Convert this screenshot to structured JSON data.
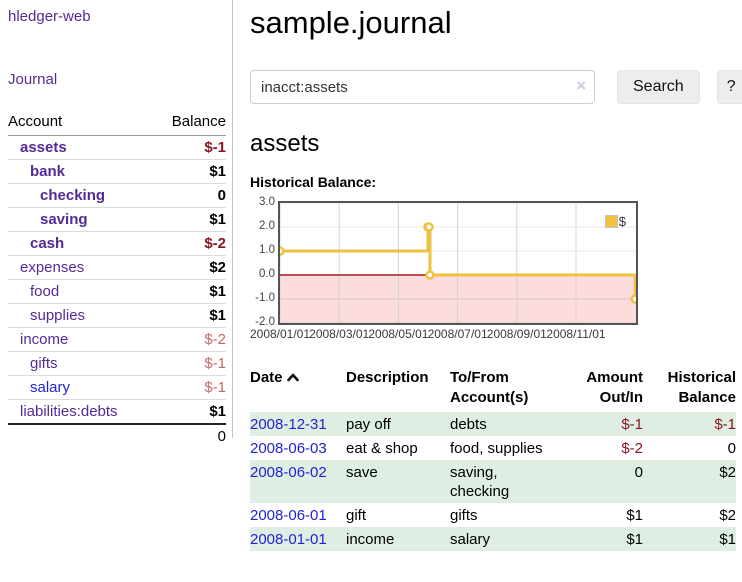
{
  "sidebar": {
    "app_title": "hledger-web",
    "journal_link": "Journal",
    "accounts_table": {
      "headers": {
        "account": "Account",
        "balance": "Balance"
      },
      "rows": [
        {
          "name": "assets",
          "balance": "$-1",
          "level": 1,
          "bold": true,
          "balance_style": "neg-strong"
        },
        {
          "name": "bank",
          "balance": "$1",
          "level": 2,
          "bold": true,
          "balance_style": "pos"
        },
        {
          "name": "checking",
          "balance": "0",
          "level": 3,
          "bold": true,
          "balance_style": "pos"
        },
        {
          "name": "saving",
          "balance": "$1",
          "level": 3,
          "bold": true,
          "balance_style": "pos"
        },
        {
          "name": "cash",
          "balance": "$-2",
          "level": 2,
          "bold": true,
          "balance_style": "neg-strong"
        },
        {
          "name": "expenses",
          "balance": "$2",
          "level": 1,
          "bold": false,
          "balance_style": "pos"
        },
        {
          "name": "food",
          "balance": "$1",
          "level": 2,
          "bold": false,
          "balance_style": "pos"
        },
        {
          "name": "supplies",
          "balance": "$1",
          "level": 2,
          "bold": false,
          "balance_style": "pos"
        },
        {
          "name": "income",
          "balance": "$-2",
          "level": 1,
          "bold": false,
          "balance_style": "neg-soft"
        },
        {
          "name": "gifts",
          "balance": "$-1",
          "level": 2,
          "bold": false,
          "balance_style": "neg-soft"
        },
        {
          "name": "salary",
          "balance": "$-1",
          "level": 2,
          "bold": false,
          "balance_style": "neg-soft",
          "link_style": "blue"
        },
        {
          "name": "liabilities:debts",
          "balance": "$1",
          "level": 1,
          "bold": false,
          "balance_style": "pos"
        }
      ],
      "total": "0"
    }
  },
  "main": {
    "title": "sample.journal",
    "search": {
      "value": "inacct:assets",
      "clear_icon": "×",
      "button": "Search",
      "help_button": "?"
    },
    "account_heading": "assets",
    "chart_label": "Historical Balance:"
  },
  "chart_data": {
    "type": "line",
    "style": "step",
    "title": "Historical Balance",
    "series": [
      {
        "name": "$",
        "color": "#edc240",
        "points": [
          [
            "2008-01-01",
            1
          ],
          [
            "2008-06-01",
            2
          ],
          [
            "2008-06-02",
            2
          ],
          [
            "2008-06-03",
            0
          ],
          [
            "2008-12-31",
            -1
          ]
        ]
      }
    ],
    "ylim": [
      -2,
      3
    ],
    "yticks": [
      3,
      2,
      1,
      0,
      -1,
      -2
    ],
    "xticks": [
      "2008/01/01",
      "2008/03/01",
      "2008/05/01",
      "2008/07/01",
      "2008/09/01",
      "2008/11/01"
    ],
    "grid": true,
    "legend": "$",
    "legend_position": "top-right",
    "negative_region_color": "#fcdcdc",
    "zero_line_color": "#9c1f1f"
  },
  "register": {
    "headers": {
      "date": "Date",
      "description": "Description",
      "accounts": "To/From Account(s)",
      "amount": "Amount Out/In",
      "balance": "Historical Balance"
    },
    "rows": [
      {
        "date": "2008-12-31",
        "description": "pay off",
        "accounts": "debts",
        "amount": "$-1",
        "balance": "$-1",
        "amount_negative": true,
        "balance_negative": true
      },
      {
        "date": "2008-06-03",
        "description": "eat & shop",
        "accounts": "food, supplies",
        "amount": "$-2",
        "balance": "0",
        "amount_negative": true,
        "balance_negative": false
      },
      {
        "date": "2008-06-02",
        "description": "save",
        "accounts": "saving, checking",
        "amount": "0",
        "balance": "$2",
        "amount_negative": false,
        "balance_negative": false
      },
      {
        "date": "2008-06-01",
        "description": "gift",
        "accounts": "gifts",
        "amount": "$1",
        "balance": "$2",
        "amount_negative": false,
        "balance_negative": false
      },
      {
        "date": "2008-01-01",
        "description": "income",
        "accounts": "salary",
        "amount": "$1",
        "balance": "$1",
        "amount_negative": false,
        "balance_negative": false
      }
    ]
  }
}
